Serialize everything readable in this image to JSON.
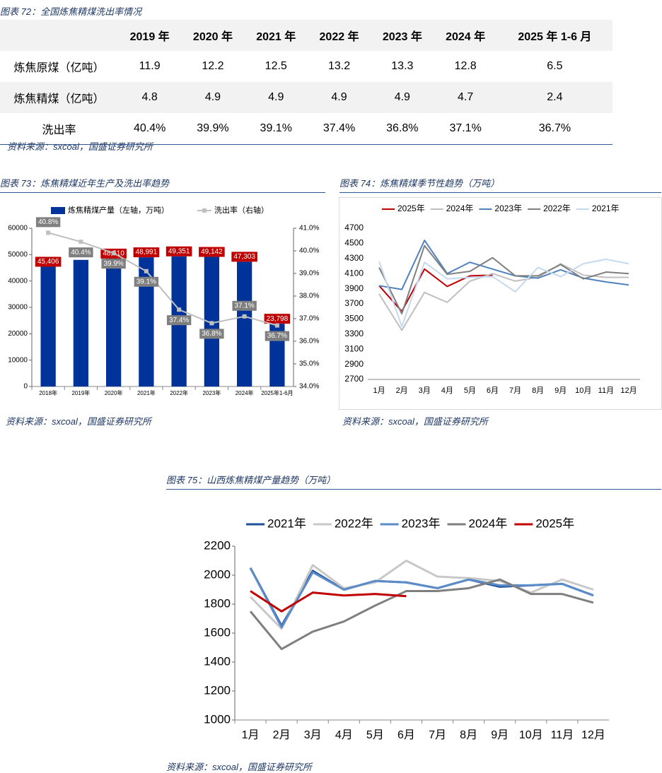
{
  "table": {
    "caption": "图表 72：全国炼焦精煤洗出率情况",
    "header": [
      "2019 年",
      "2020 年",
      "2021 年",
      "2022 年",
      "2023 年",
      "2024 年",
      "2025 年 1-6 月"
    ],
    "rows": [
      {
        "label": "炼焦原煤（亿吨）",
        "cells": [
          "11.9",
          "12.2",
          "12.5",
          "13.2",
          "13.3",
          "12.8",
          "6.5"
        ]
      },
      {
        "label": "炼焦精煤（亿吨）",
        "cells": [
          "4.8",
          "4.9",
          "4.9",
          "4.9",
          "4.9",
          "4.7",
          "2.4"
        ]
      },
      {
        "label": "洗出率",
        "cells": [
          "40.4%",
          "39.9%",
          "39.1%",
          "37.4%",
          "36.8%",
          "37.1%",
          "36.7%"
        ]
      }
    ],
    "source": "资料来源：sxcoal，国盛证券研究所"
  },
  "chart_data": [
    {
      "type": "bar",
      "title": "图表 73：炼焦精煤近年生产及洗出率趋势",
      "source": "资料来源：sxcoal，国盛证券研究所",
      "categories": [
        "2018年",
        "2019年",
        "2020年",
        "2021年",
        "2022年",
        "2023年",
        "2024年",
        "2025年1-6月"
      ],
      "series": [
        {
          "name": "炼焦精煤产量（左轴，万吨）",
          "color": "#003399",
          "values": [
            45406,
            48000,
            48510,
            48991,
            49351,
            49142,
            47303,
            23798
          ],
          "value_labels": [
            "45,406",
            null,
            "48,510",
            "48,991",
            "49,351",
            "49,142",
            "47,303",
            "23,798"
          ]
        },
        {
          "name": "洗出率（右轴）",
          "color": "#bfbfbf",
          "axis": "y2",
          "values": [
            40.8,
            40.4,
            39.9,
            39.1,
            37.4,
            36.8,
            37.1,
            36.7
          ],
          "value_labels": [
            "40.8%",
            "40.4%",
            "39.9%",
            "39.1%",
            "37.4%",
            "36.8%",
            "37.1%",
            "36.7%"
          ]
        }
      ],
      "ylim": [
        0,
        60000
      ],
      "yticks": [
        0,
        10000,
        20000,
        30000,
        40000,
        50000,
        60000
      ],
      "y2lim": [
        34,
        41
      ],
      "y2ticks": [
        {
          "value": 34,
          "label": "34.0%"
        },
        {
          "value": 35,
          "label": "35.0%"
        },
        {
          "value": 36,
          "label": "36.0%"
        },
        {
          "value": 37,
          "label": "37.0%"
        },
        {
          "value": 38,
          "label": "38.0%"
        },
        {
          "value": 39,
          "label": "39.0%"
        },
        {
          "value": 40,
          "label": "40.0%"
        },
        {
          "value": 41,
          "label": "41.0%"
        }
      ]
    },
    {
      "type": "line",
      "title": "图表 74：炼焦精煤季节性趋势（万吨）",
      "source": "资料来源：sxcoal，国盛证券研究所",
      "categories": [
        "1月",
        "2月",
        "3月",
        "4月",
        "5月",
        "6月",
        "7月",
        "8月",
        "9月",
        "10月",
        "11月",
        "12月"
      ],
      "series": [
        {
          "name": "2025年",
          "color": "#c00000",
          "values": [
            3940,
            3600,
            4160,
            3930,
            4070,
            4080,
            null,
            null,
            null,
            null,
            null,
            null
          ]
        },
        {
          "name": "2024年",
          "color": "#bfbfbf",
          "values": [
            3830,
            3350,
            3850,
            3720,
            4000,
            4100,
            4000,
            4050,
            4230,
            4080,
            4050,
            4050
          ]
        },
        {
          "name": "2023年",
          "color": "#4f81bd",
          "values": [
            3940,
            3890,
            4540,
            4100,
            4250,
            4160,
            4070,
            4040,
            4150,
            4040,
            3990,
            3950
          ]
        },
        {
          "name": "2022年",
          "color": "#7f7f7f",
          "values": [
            4180,
            3570,
            4470,
            4090,
            4130,
            4310,
            4070,
            4070,
            4220,
            4030,
            4120,
            4100
          ]
        },
        {
          "name": "2021年",
          "color": "#c5d9f1",
          "values": [
            4260,
            3400,
            4250,
            4030,
            4050,
            4060,
            3860,
            4180,
            4060,
            4230,
            4290,
            4230
          ]
        }
      ],
      "ylim": [
        2700,
        4700
      ],
      "yticks": [
        2700,
        2900,
        3100,
        3300,
        3500,
        3700,
        3900,
        4100,
        4300,
        4500,
        4700
      ]
    },
    {
      "type": "line",
      "title": "图表 75：山西炼焦精煤产量趋势（万吨）",
      "source": "资料来源：sxcoal，国盛证券研究所",
      "categories": [
        "1月",
        "2月",
        "3月",
        "4月",
        "5月",
        "6月",
        "7月",
        "8月",
        "9月",
        "10月",
        "11月",
        "12月"
      ],
      "series": [
        {
          "name": "2021年",
          "color": "#1f4e9a",
          "values": [
            2050,
            1650,
            2030,
            1900,
            1960,
            1950,
            1910,
            1970,
            1920,
            1930,
            1940,
            1860
          ]
        },
        {
          "name": "2022年",
          "color": "#c8c8c8",
          "values": [
            1850,
            1630,
            2070,
            1910,
            1950,
            2100,
            1990,
            1980,
            1960,
            1880,
            1970,
            1900
          ]
        },
        {
          "name": "2023年",
          "color": "#5b8cc8",
          "values": [
            2050,
            1640,
            2020,
            1900,
            1960,
            1950,
            1910,
            1970,
            1930,
            1930,
            1940,
            1860
          ]
        },
        {
          "name": "2024年",
          "color": "#7f7f7f",
          "values": [
            1750,
            1490,
            1610,
            1680,
            1790,
            1890,
            1890,
            1910,
            1970,
            1870,
            1870,
            1810
          ]
        },
        {
          "name": "2025年",
          "color": "#c00000",
          "values": [
            1890,
            1750,
            1880,
            1860,
            1870,
            1855,
            null,
            null,
            null,
            null,
            null,
            null
          ]
        }
      ],
      "ylim": [
        1000,
        2200
      ],
      "yticks": [
        1000,
        1200,
        1400,
        1600,
        1800,
        2000,
        2200
      ]
    }
  ]
}
